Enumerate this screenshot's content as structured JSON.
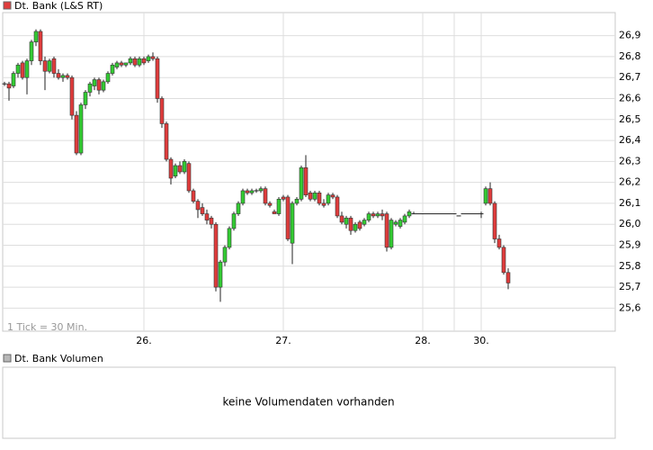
{
  "chart_data": {
    "type": "candlestick",
    "title": "Dt. Bank (L&S RT)",
    "annotation": "1 Tick = 30 Min.",
    "up_color": "#33cc33",
    "down_color": "#e03c3c",
    "legend_color": "#e03c3c",
    "xlim": [
      -0.4,
      135.8
    ],
    "ylim": [
      25.49,
      27.01
    ],
    "xticks": [
      {
        "value": 31,
        "label": "26."
      },
      {
        "value": 62,
        "label": "27."
      },
      {
        "value": 93,
        "label": "28."
      },
      {
        "value": 106,
        "label": "30."
      }
    ],
    "xgrid": [
      31,
      62,
      93,
      100,
      106
    ],
    "yticks": [
      {
        "value": 25.6,
        "label": "25,6"
      },
      {
        "value": 25.7,
        "label": "25,7"
      },
      {
        "value": 25.8,
        "label": "25,8"
      },
      {
        "value": 25.9,
        "label": "25,9"
      },
      {
        "value": 26.0,
        "label": "26,0"
      },
      {
        "value": 26.1,
        "label": "26,1"
      },
      {
        "value": 26.2,
        "label": "26,2"
      },
      {
        "value": 26.3,
        "label": "26,3"
      },
      {
        "value": 26.4,
        "label": "26,4"
      },
      {
        "value": 26.5,
        "label": "26,5"
      },
      {
        "value": 26.6,
        "label": "26,6"
      },
      {
        "value": 26.7,
        "label": "26,7"
      },
      {
        "value": 26.8,
        "label": "26,8"
      },
      {
        "value": 26.9,
        "label": "26,9"
      }
    ],
    "grid": true,
    "x": [
      0,
      1,
      2,
      3,
      4,
      5,
      6,
      7,
      8,
      9,
      10,
      11,
      12,
      13,
      14,
      15,
      16,
      17,
      18,
      19,
      20,
      21,
      22,
      23,
      24,
      25,
      26,
      27,
      28,
      29,
      30,
      31,
      32,
      33,
      34,
      35,
      36,
      37,
      38,
      39,
      40,
      41,
      42,
      43,
      44,
      45,
      46,
      47,
      48,
      49,
      50,
      51,
      52,
      53,
      54,
      55,
      56,
      57,
      58,
      59,
      60,
      61,
      62,
      63,
      64,
      65,
      66,
      67,
      68,
      69,
      70,
      71,
      72,
      73,
      74,
      75,
      76,
      77,
      78,
      79,
      80,
      81,
      82,
      83,
      84,
      85,
      86,
      87,
      88,
      89,
      90,
      91,
      92,
      93,
      94,
      95,
      96,
      97,
      98,
      99,
      100,
      101,
      102,
      103,
      104,
      105,
      106,
      107,
      108,
      109,
      110,
      111,
      112
    ],
    "open": [
      26.67,
      26.67,
      26.66,
      26.72,
      26.77,
      26.7,
      26.78,
      26.87,
      26.92,
      26.78,
      26.73,
      26.79,
      26.72,
      26.7,
      26.71,
      26.7,
      26.52,
      26.34,
      26.57,
      26.63,
      26.66,
      26.69,
      26.64,
      26.68,
      26.72,
      26.75,
      26.77,
      26.76,
      26.77,
      26.79,
      26.76,
      26.79,
      26.78,
      26.8,
      26.79,
      26.6,
      26.48,
      26.31,
      26.23,
      26.28,
      26.25,
      26.29,
      26.16,
      26.11,
      26.08,
      26.05,
      26.03,
      26.0,
      25.7,
      25.82,
      25.89,
      25.98,
      26.05,
      26.1,
      26.16,
      26.15,
      26.16,
      26.16,
      26.17,
      26.1,
      26.06,
      26.05,
      26.13,
      26.13,
      25.91,
      26.1,
      26.12,
      26.27,
      26.15,
      26.12,
      26.15,
      26.1,
      26.1,
      26.14,
      26.13,
      26.04,
      26.0,
      26.03,
      25.97,
      26.01,
      26.0,
      26.02,
      26.05,
      26.04,
      26.05,
      26.05,
      25.89,
      26.0,
      25.99,
      26.01,
      26.04,
      26.05,
      26.05,
      26.05,
      26.05,
      26.05,
      26.05,
      26.05,
      26.05,
      26.05,
      26.05,
      26.04,
      26.05,
      26.05,
      26.05,
      26.05,
      26.05,
      26.1,
      26.17,
      26.1,
      25.93,
      25.89,
      25.77
    ],
    "high": [
      26.68,
      26.68,
      26.73,
      26.77,
      26.78,
      26.79,
      26.88,
      26.93,
      26.93,
      26.8,
      26.79,
      26.8,
      26.74,
      26.72,
      26.72,
      26.71,
      26.54,
      26.58,
      26.64,
      26.68,
      26.7,
      26.7,
      26.69,
      26.73,
      26.77,
      26.78,
      26.78,
      26.77,
      26.8,
      26.8,
      26.8,
      26.8,
      26.81,
      26.82,
      26.8,
      26.61,
      26.49,
      26.32,
      26.29,
      26.3,
      26.31,
      26.3,
      26.17,
      26.12,
      26.1,
      26.07,
      26.04,
      26.01,
      25.83,
      25.9,
      25.99,
      26.06,
      26.11,
      26.17,
      26.17,
      26.17,
      26.17,
      26.18,
      26.18,
      26.11,
      26.07,
      26.13,
      26.14,
      26.14,
      26.11,
      26.13,
      26.28,
      26.33,
      26.16,
      26.16,
      26.16,
      26.12,
      26.15,
      26.15,
      26.14,
      26.06,
      26.04,
      26.04,
      26.01,
      26.02,
      26.03,
      26.06,
      26.06,
      26.06,
      26.07,
      26.06,
      26.03,
      26.02,
      26.03,
      26.05,
      26.07,
      26.06,
      26.05,
      26.05,
      26.05,
      26.05,
      26.05,
      26.05,
      26.05,
      26.05,
      26.05,
      26.04,
      26.05,
      26.05,
      26.05,
      26.05,
      26.06,
      26.18,
      26.2,
      26.11,
      25.95,
      25.9,
      25.79
    ],
    "low": [
      26.66,
      26.59,
      26.65,
      26.7,
      26.69,
      26.62,
      26.76,
      26.85,
      26.76,
      26.64,
      26.72,
      26.7,
      26.69,
      26.68,
      26.69,
      26.5,
      26.33,
      26.33,
      26.55,
      26.61,
      26.64,
      26.62,
      26.63,
      26.67,
      26.71,
      26.74,
      26.75,
      26.75,
      26.76,
      26.75,
      26.75,
      26.76,
      26.77,
      26.78,
      26.58,
      26.46,
      26.3,
      26.19,
      26.22,
      26.24,
      26.24,
      26.15,
      26.1,
      26.03,
      26.04,
      26.0,
      25.98,
      25.68,
      25.63,
      25.8,
      25.88,
      25.97,
      26.04,
      26.09,
      26.14,
      26.14,
      26.15,
      26.15,
      26.09,
      26.08,
      26.05,
      26.04,
      26.11,
      25.92,
      25.81,
      26.09,
      26.11,
      26.13,
      26.11,
      26.11,
      26.09,
      26.08,
      26.09,
      26.12,
      26.03,
      26.0,
      25.98,
      25.95,
      25.96,
      25.97,
      25.99,
      26.01,
      26.03,
      26.03,
      26.02,
      25.87,
      25.88,
      25.99,
      25.98,
      26.0,
      26.03,
      26.05,
      26.05,
      26.05,
      26.05,
      26.05,
      26.05,
      26.05,
      26.05,
      26.05,
      26.05,
      26.04,
      26.05,
      26.05,
      26.05,
      26.05,
      26.03,
      26.09,
      26.09,
      25.91,
      25.88,
      25.76,
      25.69
    ],
    "close": [
      26.67,
      26.65,
      26.72,
      26.76,
      26.7,
      26.78,
      26.87,
      26.92,
      26.78,
      26.73,
      26.78,
      26.72,
      26.7,
      26.71,
      26.7,
      26.52,
      26.34,
      26.57,
      26.63,
      26.67,
      26.69,
      26.64,
      26.68,
      26.72,
      26.76,
      26.77,
      26.76,
      26.77,
      26.79,
      26.76,
      26.79,
      26.77,
      26.8,
      26.79,
      26.6,
      26.48,
      26.31,
      26.22,
      26.28,
      26.25,
      26.3,
      26.16,
      26.11,
      26.07,
      26.05,
      26.02,
      26.0,
      25.7,
      25.82,
      25.89,
      25.98,
      26.05,
      26.1,
      26.16,
      26.15,
      26.16,
      26.16,
      26.17,
      26.1,
      26.09,
      26.05,
      26.12,
      26.12,
      25.93,
      26.1,
      26.12,
      26.27,
      26.14,
      26.12,
      26.15,
      26.1,
      26.09,
      26.14,
      26.13,
      26.04,
      26.01,
      26.03,
      25.97,
      26.0,
      25.98,
      26.02,
      26.05,
      26.04,
      26.05,
      26.04,
      25.89,
      26.02,
      26.01,
      26.02,
      26.04,
      26.06,
      26.05,
      26.05,
      26.05,
      26.05,
      26.05,
      26.05,
      26.05,
      26.05,
      26.05,
      26.05,
      26.04,
      26.05,
      26.05,
      26.05,
      26.05,
      26.05,
      26.17,
      26.1,
      25.93,
      25.89,
      25.77,
      25.72
    ]
  },
  "volume_panel": {
    "title": "Dt. Bank Volumen",
    "message": "keine Volumendaten vorhanden",
    "legend_color": "#b8b8b8"
  }
}
